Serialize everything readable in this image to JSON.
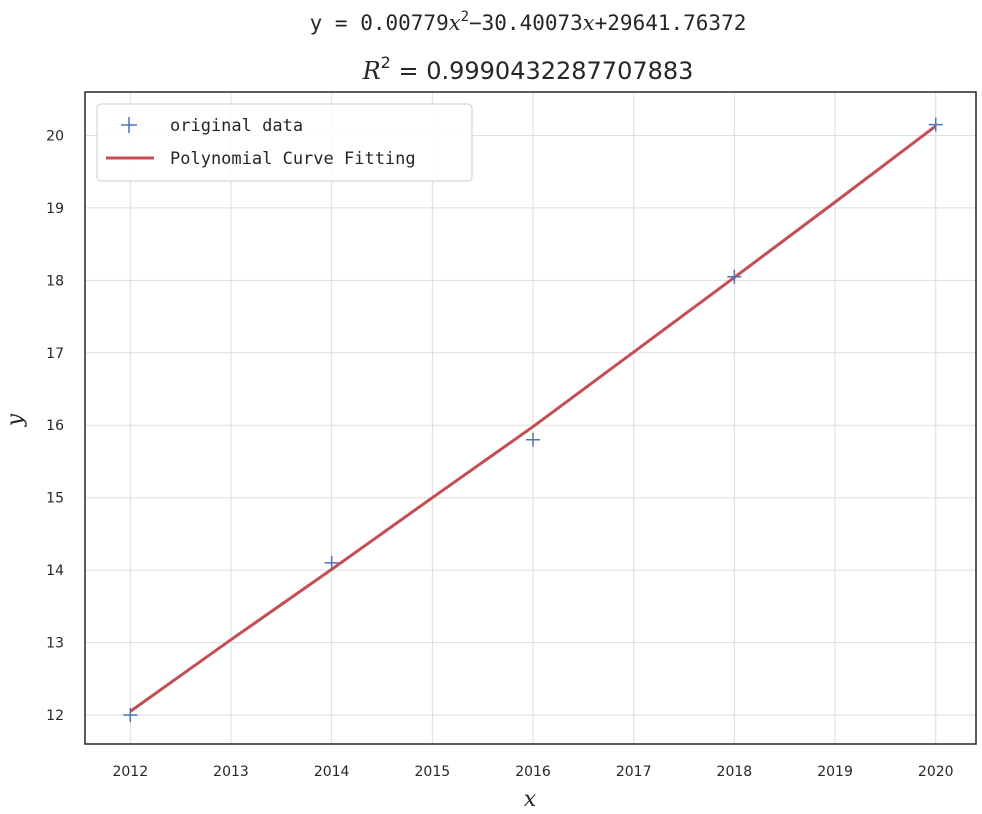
{
  "chart_data": {
    "type": "scatter",
    "title_line1": {
      "prefix": "y = 0.00779",
      "var1": "x",
      "sup": "2",
      "mid": "−30.40073",
      "var2": "x",
      "suffix": "+29641.76372"
    },
    "title_line2": {
      "var": "R",
      "sup": "2",
      "suffix": " = 0.9990432287707883"
    },
    "xlabel": "x",
    "ylabel": "y",
    "xlim": [
      2011.55,
      2020.4
    ],
    "ylim": [
      11.6,
      20.6
    ],
    "x_ticks": [
      2012,
      2013,
      2014,
      2015,
      2016,
      2017,
      2018,
      2019,
      2020
    ],
    "y_ticks": [
      12,
      13,
      14,
      15,
      16,
      17,
      18,
      19,
      20
    ],
    "grid": true,
    "legend_position": "upper-left",
    "coefficients": [
      0.00779,
      -30.40073,
      29641.76372
    ],
    "series": [
      {
        "name": "original data",
        "kind": "points",
        "marker": "+",
        "color": "#4c72b0",
        "x": [
          2012,
          2014,
          2016,
          2018,
          2020
        ],
        "y": [
          12.0,
          14.1,
          15.8,
          18.05,
          20.15
        ]
      },
      {
        "name": "Polynomial Curve Fitting",
        "kind": "line",
        "color": "#c44e52",
        "x": [
          2012,
          2013,
          2014,
          2015,
          2016,
          2017,
          2018,
          2019,
          2020
        ],
        "y": [
          12.05,
          13.04,
          14.01,
          15.0,
          15.98,
          17.01,
          18.04,
          19.08,
          20.13
        ]
      }
    ]
  }
}
